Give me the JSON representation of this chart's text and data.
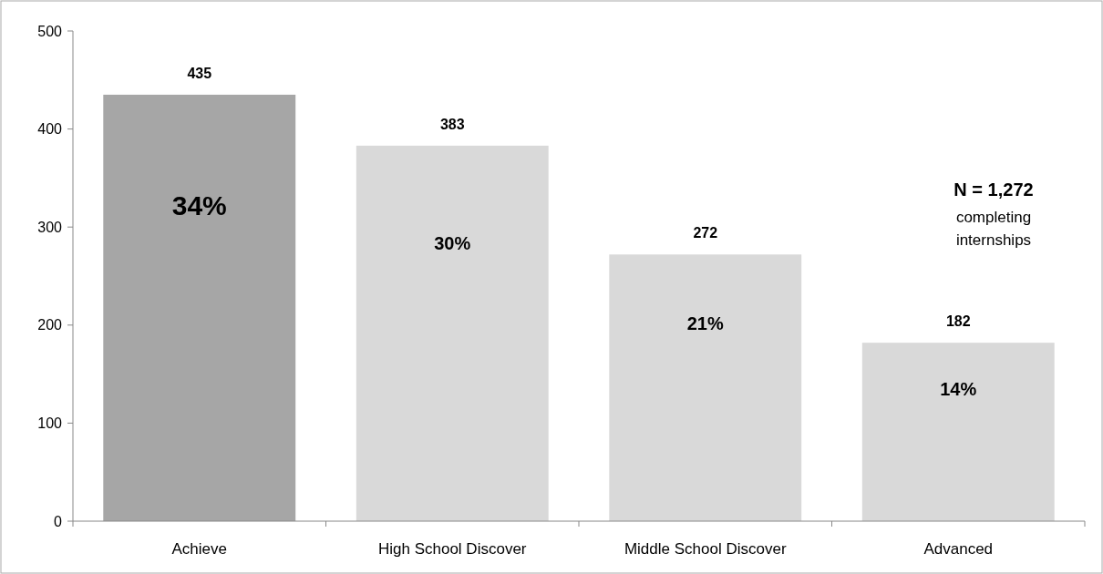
{
  "chart_data": {
    "type": "bar",
    "categories": [
      "Achieve",
      "High School Discover",
      "Middle School Discover",
      "Advanced"
    ],
    "values": [
      435,
      383,
      272,
      182
    ],
    "colors": [
      "#a6a6a6",
      "#d9d9d9",
      "#d9d9d9",
      "#d9d9d9"
    ],
    "ylim": [
      0,
      500
    ],
    "yticks": [
      0,
      100,
      200,
      300,
      400,
      500
    ],
    "data_labels": true,
    "grid": false,
    "annotations": [
      "34%",
      "30%",
      "21%",
      "14%",
      "N = 1,272",
      "completing internships"
    ]
  }
}
